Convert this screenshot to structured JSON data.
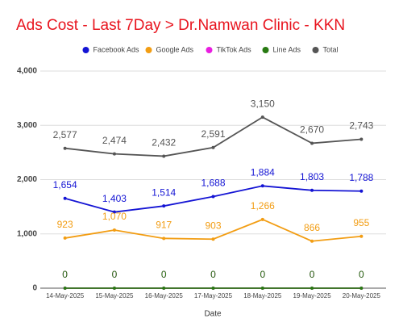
{
  "chart_data": {
    "type": "line",
    "title": "Ads Cost - Last 7Day > Dr.Namwan Clinic - KKN",
    "x_label": "Date",
    "categories": [
      "14-May-2025",
      "15-May-2025",
      "16-May-2025",
      "17-May-2025",
      "18-May-2025",
      "19-May-2025",
      "20-May-2025"
    ],
    "series": [
      {
        "name": "Facebook Ads",
        "color": "#1414d4",
        "values": [
          1654,
          1403,
          1514,
          1688,
          1884,
          1803,
          1788
        ],
        "value_labels": [
          "1,654",
          "1,403",
          "1,514",
          "1,688",
          "1,884",
          "1,803",
          "1,788"
        ]
      },
      {
        "name": "Google Ads",
        "color": "#f29d13",
        "values": [
          923,
          1070,
          917,
          903,
          1266,
          866,
          955
        ],
        "value_labels": [
          "923",
          "1,070",
          "917",
          "903",
          "1,266",
          "866",
          "955"
        ]
      },
      {
        "name": "TikTok Ads",
        "color": "#e91ee0",
        "values": [
          0,
          0,
          0,
          0,
          0,
          0,
          0
        ]
      },
      {
        "name": "Line Ads",
        "color": "#287a12",
        "values": [
          0,
          0,
          0,
          0,
          0,
          0,
          0
        ]
      },
      {
        "name": "Total",
        "color": "#555555",
        "values": [
          2577,
          2474,
          2432,
          2591,
          3150,
          2670,
          2743
        ],
        "value_labels": [
          "2,577",
          "2,474",
          "2,432",
          "2,591",
          "3,150",
          "2,670",
          "2,743"
        ]
      }
    ],
    "ylim": [
      0,
      4000
    ],
    "yticks": [
      0,
      {
        "value": 1000,
        "label": "1,000"
      },
      {
        "value": 2000,
        "label": "2,000"
      },
      {
        "value": 3000,
        "label": "3,000"
      },
      {
        "value": 4000,
        "label": "4,000"
      }
    ],
    "grid": true,
    "legend": "top"
  }
}
